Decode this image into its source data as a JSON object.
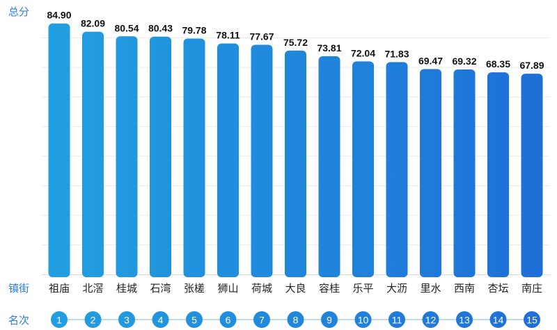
{
  "chart_data": {
    "type": "bar",
    "ylabel": "总分",
    "xlabel": "镇街",
    "rank_label": "名次",
    "categories": [
      "祖庙",
      "北滘",
      "桂城",
      "石湾",
      "张槎",
      "狮山",
      "荷城",
      "大良",
      "容桂",
      "乐平",
      "大沥",
      "里水",
      "西南",
      "杏坛",
      "南庄"
    ],
    "values": [
      84.9,
      82.09,
      80.54,
      80.43,
      79.78,
      78.11,
      77.67,
      75.72,
      73.81,
      72.04,
      71.83,
      69.47,
      69.32,
      68.35,
      67.89
    ],
    "value_labels": [
      "84.90",
      "82.09",
      "80.54",
      "80.43",
      "79.78",
      "78.11",
      "77.67",
      "75.72",
      "73.81",
      "72.04",
      "71.83",
      "69.47",
      "69.32",
      "68.35",
      "67.89"
    ],
    "ranks": [
      "1",
      "2",
      "3",
      "4",
      "5",
      "6",
      "7",
      "8",
      "9",
      "10",
      "11",
      "12",
      "13",
      "14",
      "15"
    ],
    "ylim": [
      0,
      90
    ],
    "grid": true,
    "colors": {
      "bar_start": "#22a0e0",
      "bar_end": "#1e6ed8",
      "label": "#2b7de0",
      "rank_line": "#9fd0f0"
    }
  }
}
